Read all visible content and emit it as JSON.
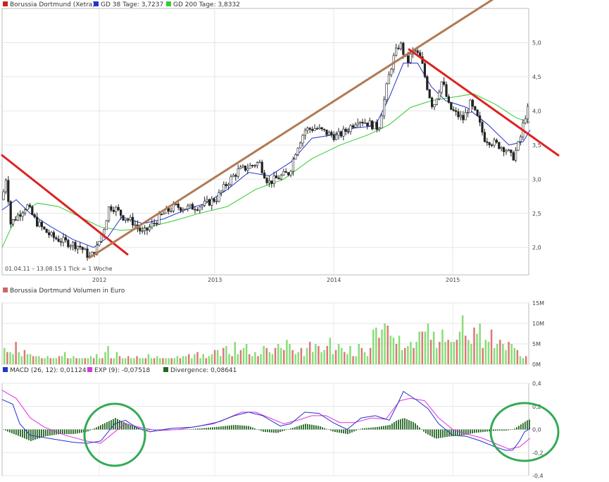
{
  "legend_main": {
    "item1": "Borussia Dortmund (Xetra)",
    "item2": "GD 38 Tage: 3,7237",
    "item3": "GD 200 Tage: 3,8332",
    "color1": "#cc2222",
    "color2": "#2233cc",
    "color3": "#33cc33"
  },
  "legend_vol": {
    "item1": "Borussia Dortmund Volumen in Euro",
    "color1": "#cc6666"
  },
  "legend_macd": {
    "item1": "MACD (26, 12): 0,01124",
    "item2": "EXP (9): -0,07518",
    "item3": "Divergence: 0,08641",
    "color1": "#2233cc",
    "color2": "#dd33dd",
    "color3": "#226622"
  },
  "info_text": "01.04.11 – 13.08.15  1 Tick = 1 Woche",
  "chart_data": [
    {
      "type": "candlestick",
      "title": "Borussia Dortmund (Xetra)",
      "x_tick_labels": [
        "2012",
        "2013",
        "2014",
        "2015"
      ],
      "y_tick_labels": [
        "2,0",
        "2,5",
        "3,0",
        "3,5",
        "4,0",
        "4,5",
        "5,0"
      ],
      "ylim": [
        1.6,
        5.5
      ],
      "grid": true,
      "series": [
        {
          "name": "GD 38 Tage",
          "last_value": 3.7237
        },
        {
          "name": "GD 200 Tage",
          "last_value": 3.8332
        }
      ],
      "price_points": [
        [
          0,
          2.7
        ],
        [
          6,
          3.05
        ],
        [
          12,
          2.35
        ],
        [
          25,
          2.5
        ],
        [
          35,
          2.62
        ],
        [
          48,
          2.38
        ],
        [
          60,
          2.25
        ],
        [
          72,
          2.15
        ],
        [
          90,
          2.08
        ],
        [
          110,
          2.02
        ],
        [
          125,
          1.85
        ],
        [
          135,
          2.0
        ],
        [
          145,
          2.3
        ],
        [
          152,
          2.6
        ],
        [
          160,
          2.58
        ],
        [
          172,
          2.45
        ],
        [
          185,
          2.38
        ],
        [
          200,
          2.2
        ],
        [
          215,
          2.35
        ],
        [
          230,
          2.5
        ],
        [
          245,
          2.6
        ],
        [
          265,
          2.58
        ],
        [
          285,
          2.62
        ],
        [
          305,
          2.72
        ],
        [
          320,
          2.95
        ],
        [
          335,
          3.12
        ],
        [
          350,
          3.18
        ],
        [
          365,
          3.25
        ],
        [
          378,
          2.95
        ],
        [
          392,
          3.02
        ],
        [
          408,
          3.1
        ],
        [
          418,
          3.45
        ],
        [
          430,
          3.72
        ],
        [
          445,
          3.75
        ],
        [
          460,
          3.68
        ],
        [
          475,
          3.62
        ],
        [
          490,
          3.72
        ],
        [
          505,
          3.88
        ],
        [
          520,
          3.82
        ],
        [
          535,
          3.75
        ],
        [
          548,
          4.45
        ],
        [
          555,
          4.75
        ],
        [
          565,
          5.0
        ],
        [
          575,
          4.7
        ],
        [
          585,
          4.9
        ],
        [
          595,
          4.75
        ],
        [
          605,
          4.3
        ],
        [
          612,
          4.05
        ],
        [
          625,
          4.45
        ],
        [
          635,
          4.05
        ],
        [
          645,
          3.95
        ],
        [
          655,
          3.88
        ],
        [
          665,
          4.1
        ],
        [
          675,
          3.9
        ],
        [
          685,
          3.6
        ],
        [
          700,
          3.52
        ],
        [
          715,
          3.45
        ],
        [
          725,
          3.3
        ],
        [
          735,
          3.55
        ],
        [
          742,
          3.9
        ],
        [
          748,
          4.05
        ]
      ],
      "gd38_points": [
        [
          0,
          2.55
        ],
        [
          20,
          2.7
        ],
        [
          40,
          2.5
        ],
        [
          70,
          2.3
        ],
        [
          100,
          2.12
        ],
        [
          130,
          2.0
        ],
        [
          150,
          2.15
        ],
        [
          170,
          2.45
        ],
        [
          200,
          2.35
        ],
        [
          230,
          2.42
        ],
        [
          260,
          2.55
        ],
        [
          290,
          2.65
        ],
        [
          320,
          2.85
        ],
        [
          350,
          3.1
        ],
        [
          380,
          3.05
        ],
        [
          410,
          3.25
        ],
        [
          440,
          3.6
        ],
        [
          470,
          3.65
        ],
        [
          500,
          3.75
        ],
        [
          530,
          3.78
        ],
        [
          550,
          4.2
        ],
        [
          570,
          4.7
        ],
        [
          590,
          4.7
        ],
        [
          610,
          4.35
        ],
        [
          630,
          4.15
        ],
        [
          660,
          4.05
        ],
        [
          690,
          3.8
        ],
        [
          720,
          3.5
        ],
        [
          740,
          3.55
        ],
        [
          750,
          3.72
        ]
      ],
      "gd200_points": [
        [
          0,
          2.0
        ],
        [
          20,
          2.45
        ],
        [
          50,
          2.65
        ],
        [
          80,
          2.6
        ],
        [
          110,
          2.45
        ],
        [
          140,
          2.3
        ],
        [
          170,
          2.25
        ],
        [
          200,
          2.28
        ],
        [
          240,
          2.38
        ],
        [
          280,
          2.5
        ],
        [
          320,
          2.6
        ],
        [
          360,
          2.85
        ],
        [
          400,
          3.0
        ],
        [
          440,
          3.3
        ],
        [
          480,
          3.5
        ],
        [
          520,
          3.65
        ],
        [
          550,
          3.8
        ],
        [
          580,
          4.05
        ],
        [
          610,
          4.15
        ],
        [
          640,
          4.2
        ],
        [
          670,
          4.25
        ],
        [
          700,
          4.1
        ],
        [
          730,
          3.9
        ],
        [
          750,
          3.83
        ]
      ],
      "trendlines": [
        {
          "from": [
            0,
            3.35
          ],
          "to": [
            178,
            1.9
          ]
        },
        {
          "from": [
            124,
            1.85
          ],
          "to": [
            745,
            5.95
          ]
        },
        {
          "from": [
            578,
            4.9
          ],
          "to": [
            790,
            3.35
          ]
        }
      ]
    },
    {
      "type": "bar",
      "title": "Borussia Dortmund Volumen in Euro",
      "y_tick_labels": [
        "0M",
        "5M",
        "10M",
        "15M"
      ],
      "ylim": [
        0,
        15
      ],
      "values_millions": [
        4,
        3,
        3,
        2.5,
        5.5,
        3,
        2,
        3.5,
        2.5,
        2.5,
        2,
        2,
        2,
        1.5,
        1.5,
        2,
        1.5,
        1.5,
        1.5,
        2,
        2,
        3,
        1.5,
        1.5,
        2,
        1.5,
        1.5,
        1.5,
        1.5,
        1.5,
        2,
        1.5,
        2.5,
        1.5,
        1.5,
        3,
        4.5,
        1.5,
        1.5,
        3,
        2,
        1.5,
        1.5,
        2,
        1.5,
        1.5,
        2,
        1.5,
        1.5,
        1.5,
        2.5,
        1.5,
        1.5,
        2,
        1.5,
        1.5,
        1.5,
        1.5,
        1.5,
        1.5,
        2,
        1.5,
        2,
        2,
        2.5,
        1.5,
        2.5,
        3,
        1.5,
        2.5,
        1.5,
        2,
        2.5,
        3.5,
        3.5,
        2,
        4,
        4.5,
        2.5,
        2,
        5.5,
        2.5,
        3.5,
        4,
        5,
        2.5,
        2,
        3,
        2,
        2.5,
        4.5,
        4,
        3,
        2.5,
        4,
        5,
        4,
        3.5,
        6,
        5,
        3.5,
        2.5,
        3,
        4,
        2,
        4,
        5.5,
        3,
        5,
        4.5,
        3,
        3.5,
        4.5,
        6.5,
        2.5,
        3.5,
        5,
        4,
        3,
        2.5,
        4.5,
        2,
        2,
        5,
        4,
        3,
        2,
        4,
        8.5,
        9,
        6.5,
        8.5,
        10,
        9.5,
        7,
        6.5,
        5,
        7,
        3.5,
        4,
        4.5,
        5.5,
        4,
        5.5,
        8,
        8,
        8,
        10,
        6,
        8,
        4,
        5.5,
        8.5,
        5.5,
        6,
        5.5,
        5.5,
        6,
        8,
        12,
        7,
        6,
        5,
        9,
        7.5,
        10,
        4,
        6,
        5.5,
        8.5,
        4,
        5,
        6,
        5,
        3.5,
        5.5,
        5,
        4,
        3.5,
        2,
        1.5,
        2
      ]
    },
    {
      "type": "line",
      "title": "MACD",
      "y_tick_labels": [
        "0,4",
        "0,2",
        "0,0",
        "-0,2",
        "-0,4"
      ],
      "ylim": [
        -0.4,
        0.4
      ],
      "series": [
        {
          "name": "MACD (26, 12)",
          "last_value": 0.01124,
          "points": [
            [
              0,
              0.26
            ],
            [
              15,
              0.22
            ],
            [
              25,
              0.05
            ],
            [
              40,
              -0.05
            ],
            [
              70,
              -0.08
            ],
            [
              100,
              -0.11
            ],
            [
              120,
              -0.12
            ],
            [
              140,
              -0.1
            ],
            [
              160,
              0.05
            ],
            [
              175,
              0.08
            ],
            [
              190,
              0.02
            ],
            [
              210,
              -0.02
            ],
            [
              240,
              0.01
            ],
            [
              270,
              0.02
            ],
            [
              300,
              0.05
            ],
            [
              330,
              0.12
            ],
            [
              350,
              0.15
            ],
            [
              370,
              0.12
            ],
            [
              395,
              0.03
            ],
            [
              410,
              0.05
            ],
            [
              430,
              0.15
            ],
            [
              450,
              0.14
            ],
            [
              470,
              0.06
            ],
            [
              490,
              0.0
            ],
            [
              510,
              0.1
            ],
            [
              530,
              0.12
            ],
            [
              550,
              0.08
            ],
            [
              560,
              0.2
            ],
            [
              570,
              0.33
            ],
            [
              590,
              0.25
            ],
            [
              605,
              0.18
            ],
            [
              620,
              0.05
            ],
            [
              640,
              -0.05
            ],
            [
              660,
              -0.06
            ],
            [
              680,
              -0.1
            ],
            [
              700,
              -0.15
            ],
            [
              715,
              -0.18
            ],
            [
              725,
              -0.18
            ],
            [
              735,
              -0.1
            ],
            [
              742,
              -0.02
            ],
            [
              750,
              0.01
            ]
          ]
        },
        {
          "name": "EXP (9)",
          "last_value": -0.07518,
          "points": [
            [
              0,
              0.34
            ],
            [
              20,
              0.27
            ],
            [
              40,
              0.1
            ],
            [
              60,
              0.02
            ],
            [
              90,
              -0.05
            ],
            [
              120,
              -0.1
            ],
            [
              140,
              -0.12
            ],
            [
              160,
              -0.02
            ],
            [
              175,
              0.05
            ],
            [
              195,
              0.02
            ],
            [
              220,
              -0.01
            ],
            [
              250,
              0.0
            ],
            [
              280,
              0.03
            ],
            [
              310,
              0.07
            ],
            [
              340,
              0.15
            ],
            [
              360,
              0.15
            ],
            [
              380,
              0.1
            ],
            [
              400,
              0.05
            ],
            [
              420,
              0.08
            ],
            [
              440,
              0.12
            ],
            [
              460,
              0.12
            ],
            [
              480,
              0.06
            ],
            [
              500,
              0.06
            ],
            [
              525,
              0.1
            ],
            [
              545,
              0.09
            ],
            [
              565,
              0.25
            ],
            [
              580,
              0.27
            ],
            [
              600,
              0.25
            ],
            [
              620,
              0.1
            ],
            [
              640,
              0.0
            ],
            [
              660,
              -0.04
            ],
            [
              680,
              -0.07
            ],
            [
              700,
              -0.12
            ],
            [
              720,
              -0.17
            ],
            [
              735,
              -0.15
            ],
            [
              750,
              -0.075
            ]
          ]
        }
      ],
      "divergence": {
        "name": "Divergence",
        "last_value": 0.08641,
        "points": [
          [
            0,
            0.0
          ],
          [
            20,
            -0.05
          ],
          [
            40,
            -0.1
          ],
          [
            60,
            -0.06
          ],
          [
            80,
            -0.04
          ],
          [
            100,
            -0.04
          ],
          [
            120,
            -0.02
          ],
          [
            130,
            0.01
          ],
          [
            140,
            0.04
          ],
          [
            150,
            0.07
          ],
          [
            160,
            0.1
          ],
          [
            170,
            0.07
          ],
          [
            185,
            0.03
          ],
          [
            200,
            -0.01
          ],
          [
            220,
            0.0
          ],
          [
            260,
            0.0
          ],
          [
            300,
            0.02
          ],
          [
            330,
            0.04
          ],
          [
            350,
            0.03
          ],
          [
            370,
            -0.02
          ],
          [
            390,
            -0.03
          ],
          [
            410,
            0.01
          ],
          [
            430,
            0.05
          ],
          [
            450,
            0.03
          ],
          [
            470,
            -0.02
          ],
          [
            490,
            -0.04
          ],
          [
            510,
            0.01
          ],
          [
            530,
            0.02
          ],
          [
            550,
            0.04
          ],
          [
            560,
            0.08
          ],
          [
            570,
            0.1
          ],
          [
            585,
            0.06
          ],
          [
            600,
            -0.03
          ],
          [
            615,
            -0.08
          ],
          [
            635,
            -0.06
          ],
          [
            655,
            -0.05
          ],
          [
            670,
            -0.03
          ],
          [
            685,
            -0.02
          ],
          [
            700,
            -0.01
          ],
          [
            715,
            -0.01
          ],
          [
            725,
            0.0
          ],
          [
            735,
            0.04
          ],
          [
            745,
            0.08
          ],
          [
            750,
            0.09
          ]
        ]
      }
    }
  ]
}
